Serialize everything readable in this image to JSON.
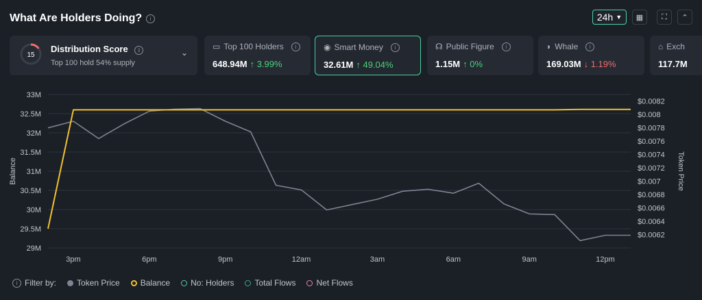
{
  "header": {
    "title": "What Are Holders Doing?",
    "timeframe": "24h"
  },
  "distribution": {
    "score": "15",
    "title": "Distribution Score",
    "subtitle": "Top 100 hold 54% supply"
  },
  "cards": [
    {
      "label": "Top 100 Holders",
      "value": "648.94M",
      "change": "↑ 3.99%",
      "dir": "up"
    },
    {
      "label": "Smart Money",
      "value": "32.61M",
      "change": "↑ 49.04%",
      "dir": "up"
    },
    {
      "label": "Public Figure",
      "value": "1.15M",
      "change": "↑ 0%",
      "dir": "up"
    },
    {
      "label": "Whale",
      "value": "169.03M",
      "change": "↓ 1.19%",
      "dir": "down"
    },
    {
      "label": "Exch",
      "value": "117.7M",
      "change": "",
      "dir": "up"
    }
  ],
  "legend": {
    "filter_label": "Filter by:",
    "items": [
      {
        "label": "Token Price",
        "color": "#7d8591",
        "filled": true
      },
      {
        "label": "Balance",
        "color": "#f2c230",
        "filled": false
      },
      {
        "label": "No: Holders",
        "color": "#4bd3a4",
        "filled": false
      },
      {
        "label": "Total Flows",
        "color": "#3fa98a",
        "filled": false
      },
      {
        "label": "Net Flows",
        "color": "#e88aa8",
        "filled": false
      }
    ]
  },
  "chart_data": {
    "type": "line",
    "x": [
      "2pm",
      "3pm",
      "4pm",
      "5pm",
      "6pm",
      "7pm",
      "8pm",
      "9pm",
      "10pm",
      "11pm",
      "12am",
      "1am",
      "2am",
      "3am",
      "4am",
      "5am",
      "6am",
      "7am",
      "8am",
      "9am",
      "10am",
      "11am",
      "12pm",
      "1pm"
    ],
    "xticks": [
      "3pm",
      "6pm",
      "9pm",
      "12am",
      "3am",
      "6am",
      "9am",
      "12pm"
    ],
    "ylabel_left": "Balance",
    "ylabel_right": "Token Price",
    "yticks_left": [
      "33M",
      "32.5M",
      "32M",
      "31.5M",
      "31M",
      "30.5M",
      "30M",
      "29.5M",
      "29M"
    ],
    "yticks_right": [
      "$0.0082",
      "$0.008",
      "$0.0078",
      "$0.0076",
      "$0.0074",
      "$0.0072",
      "$0.007",
      "$0.0068",
      "$0.0066",
      "$0.0064",
      "$0.0062"
    ],
    "ylim_left": [
      29,
      33
    ],
    "ylim_right": [
      0.006,
      0.0083
    ],
    "series": [
      {
        "name": "Token Price",
        "axis": "right",
        "color": "#7d8591",
        "values": [
          0.0078,
          0.0079,
          0.00764,
          0.00786,
          0.00805,
          0.00808,
          0.00809,
          0.0079,
          0.00774,
          0.00694,
          0.00687,
          0.00657,
          0.00665,
          0.00673,
          0.00685,
          0.00688,
          0.00682,
          0.00697,
          0.00666,
          0.00651,
          0.0065,
          0.00611,
          0.00619,
          0.00619
        ]
      },
      {
        "name": "Balance",
        "axis": "left",
        "color": "#f2c230",
        "values": [
          29.5,
          32.6,
          32.6,
          32.6,
          32.6,
          32.6,
          32.6,
          32.6,
          32.6,
          32.6,
          32.6,
          32.6,
          32.6,
          32.6,
          32.6,
          32.6,
          32.6,
          32.6,
          32.6,
          32.6,
          32.6,
          32.61,
          32.61,
          32.61
        ]
      }
    ]
  }
}
